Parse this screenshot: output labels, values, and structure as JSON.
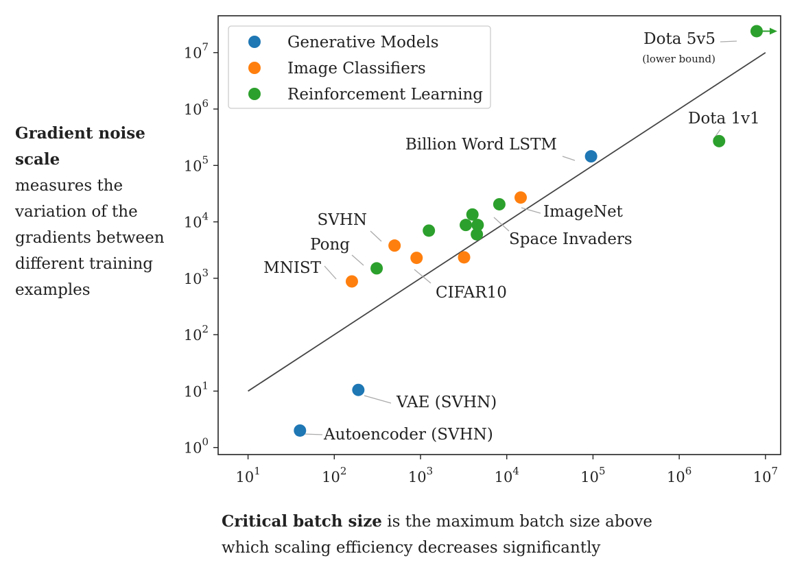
{
  "chart_data": {
    "type": "scatter",
    "x_scale": "log",
    "y_scale": "log",
    "xlim": [
      4.5,
      15000000
    ],
    "ylim": [
      0.75,
      45000000
    ],
    "x_ticks": [
      {
        "value": 10,
        "base": "10",
        "exp": "1"
      },
      {
        "value": 100,
        "base": "10",
        "exp": "2"
      },
      {
        "value": 1000,
        "base": "10",
        "exp": "3"
      },
      {
        "value": 10000,
        "base": "10",
        "exp": "4"
      },
      {
        "value": 100000,
        "base": "10",
        "exp": "5"
      },
      {
        "value": 1000000,
        "base": "10",
        "exp": "6"
      },
      {
        "value": 10000000,
        "base": "10",
        "exp": "7"
      }
    ],
    "y_ticks": [
      {
        "value": 1,
        "base": "10",
        "exp": "0"
      },
      {
        "value": 10,
        "base": "10",
        "exp": "1"
      },
      {
        "value": 100,
        "base": "10",
        "exp": "2"
      },
      {
        "value": 1000,
        "base": "10",
        "exp": "3"
      },
      {
        "value": 10000,
        "base": "10",
        "exp": "4"
      },
      {
        "value": 100000,
        "base": "10",
        "exp": "5"
      },
      {
        "value": 1000000,
        "base": "10",
        "exp": "6"
      },
      {
        "value": 10000000,
        "base": "10",
        "exp": "7"
      }
    ],
    "ylabel_bold": "Gradient noise scale",
    "ylabel_rest": "measures the variation of the gradients between different training examples",
    "xlabel_bold": "Critical batch size",
    "xlabel_rest": "is the maximum batch size above which scaling efficiency decreases significantly",
    "trend_line": {
      "x": [
        10,
        10000000
      ],
      "y": [
        10,
        10000000
      ],
      "color": "#444444"
    },
    "legend_position": "top-left",
    "grid": false,
    "series": [
      {
        "name": "Generative Models",
        "color": "#1f77b4",
        "points": [
          {
            "x": 95000,
            "y": 145000,
            "label": "Billion Word LSTM"
          },
          {
            "x": 190,
            "y": 10.5,
            "label": "VAE (SVHN)"
          },
          {
            "x": 40,
            "y": 2.0,
            "label": "Autoencoder (SVHN)"
          }
        ]
      },
      {
        "name": "Image Classifiers",
        "color": "#ff7f0e",
        "points": [
          {
            "x": 160,
            "y": 880,
            "label": "MNIST"
          },
          {
            "x": 500,
            "y": 3800,
            "label": "SVHN"
          },
          {
            "x": 900,
            "y": 2300,
            "label": "CIFAR10"
          },
          {
            "x": 3200,
            "y": 2350,
            "label": ""
          },
          {
            "x": 14500,
            "y": 27000,
            "label": "ImageNet"
          }
        ]
      },
      {
        "name": "Reinforcement Learning",
        "color": "#2ca02c",
        "points": [
          {
            "x": 310,
            "y": 1500,
            "label": "Pong"
          },
          {
            "x": 1250,
            "y": 7000,
            "label": ""
          },
          {
            "x": 3350,
            "y": 8800,
            "label": ""
          },
          {
            "x": 4000,
            "y": 13500,
            "label": ""
          },
          {
            "x": 4600,
            "y": 8800,
            "label": ""
          },
          {
            "x": 4500,
            "y": 6000,
            "label": ""
          },
          {
            "x": 8200,
            "y": 20500,
            "label": "Space Invaders"
          },
          {
            "x": 2900000,
            "y": 270000,
            "label": "Dota 1v1"
          },
          {
            "x": 7900000,
            "y": 24000000,
            "label": "Dota 5v5",
            "sublabel": "(lower bound)"
          }
        ]
      }
    ]
  }
}
